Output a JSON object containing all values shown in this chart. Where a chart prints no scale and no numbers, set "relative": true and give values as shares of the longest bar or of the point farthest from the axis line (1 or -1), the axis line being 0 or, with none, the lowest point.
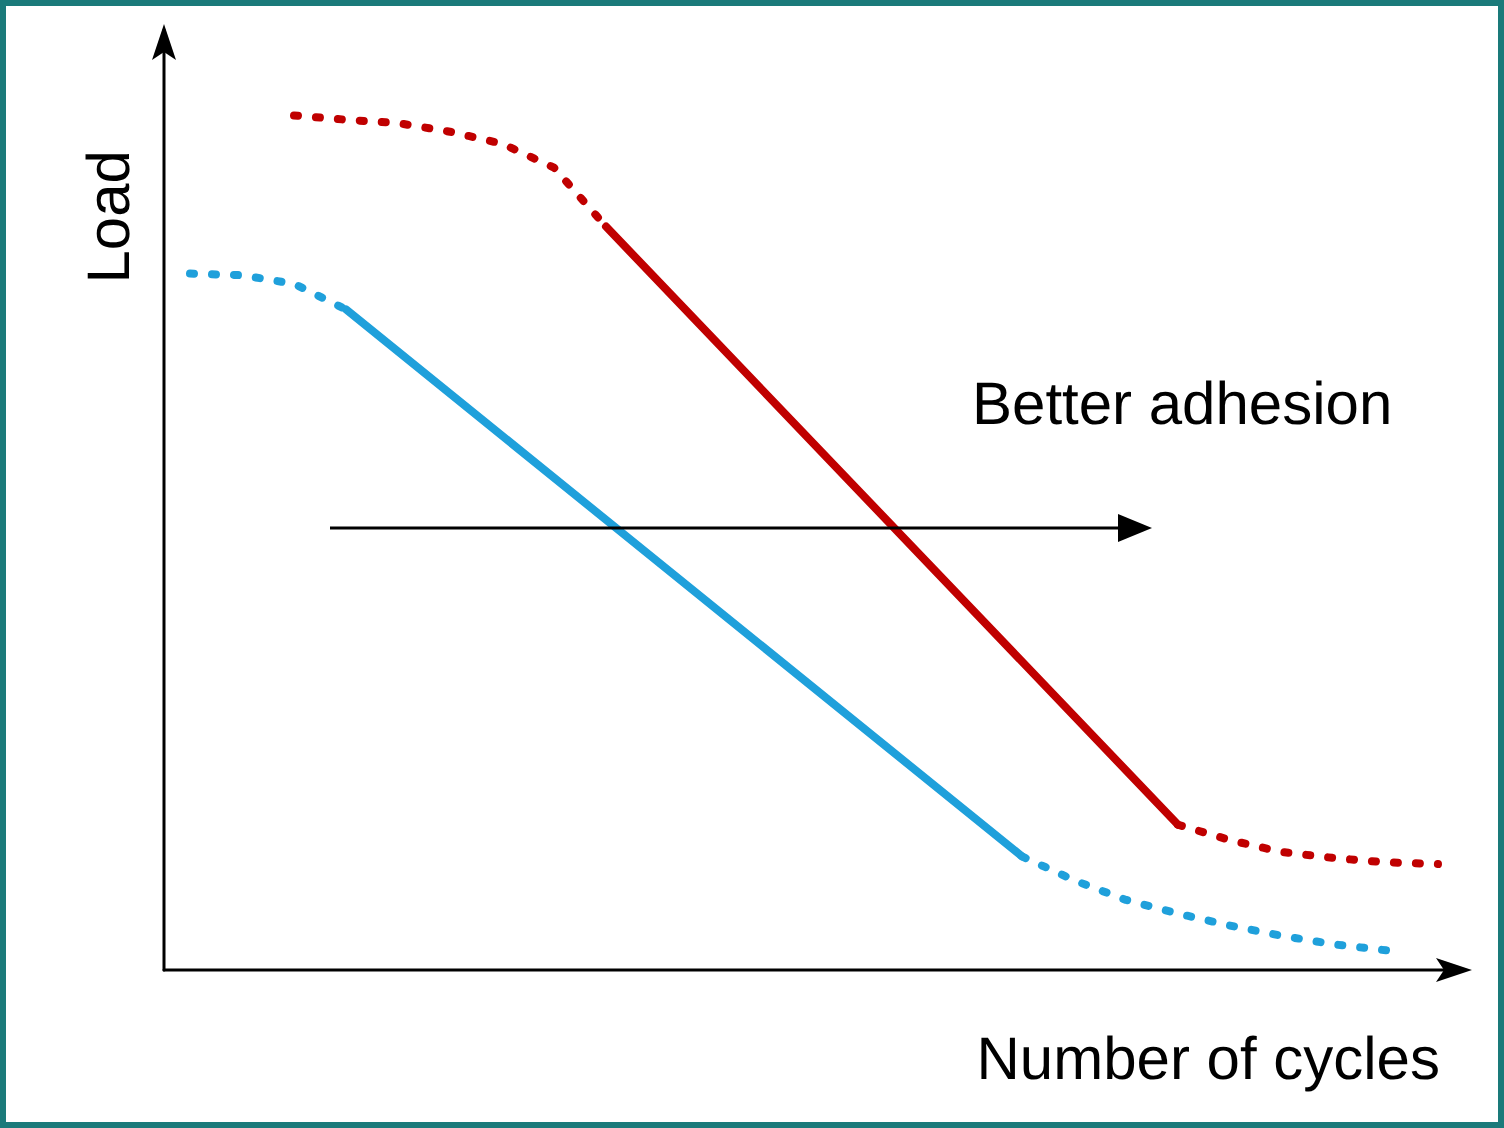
{
  "chart_data": {
    "type": "line",
    "relative": true,
    "xlabel": "Number of cycles",
    "ylabel": "Load",
    "marker": "none",
    "annotations": [
      "Better adhesion"
    ],
    "categories": [
      null,
      null,
      null,
      null,
      null,
      null,
      null,
      null,
      null,
      null,
      null,
      null,
      null,
      null,
      null,
      null,
      null,
      null,
      null,
      null,
      null,
      null,
      null,
      null,
      null
    ],
    "series": [
      {
        "color": "#c00000",
        "line_style": "dotted",
        "values": [
          null,
          null,
          1.0,
          0.995,
          0.991,
          0.981,
          0.967,
          0.939,
          0.87,
          null,
          null,
          null,
          null,
          null,
          null,
          null,
          null,
          null,
          null,
          null,
          null,
          null,
          null,
          null,
          null
        ]
      },
      {
        "color": "#c00000",
        "line_style": "solid",
        "values": [
          null,
          null,
          null,
          null,
          null,
          null,
          null,
          null,
          0.87,
          null,
          null,
          null,
          null,
          null,
          null,
          null,
          null,
          null,
          null,
          0.17,
          null,
          null,
          null,
          null,
          null
        ]
      },
      {
        "color": "#c00000",
        "line_style": "dotted",
        "values": [
          null,
          null,
          null,
          null,
          null,
          null,
          null,
          null,
          null,
          null,
          null,
          null,
          null,
          null,
          null,
          null,
          null,
          null,
          null,
          0.17,
          0.152,
          0.138,
          0.131,
          0.126,
          0.124
        ]
      },
      {
        "color": "#1fa0db",
        "line_style": "dotted",
        "values": [
          0.815,
          0.813,
          0.803,
          0.773,
          null,
          null,
          null,
          null,
          null,
          null,
          null,
          null,
          null,
          null,
          null,
          null,
          null,
          null,
          null,
          null,
          null,
          null,
          null,
          null,
          null
        ]
      },
      {
        "color": "#1fa0db",
        "line_style": "solid",
        "values": [
          null,
          null,
          null,
          0.773,
          null,
          null,
          null,
          null,
          null,
          null,
          null,
          null,
          null,
          null,
          null,
          null,
          0.133,
          null,
          null,
          null,
          null,
          null,
          null,
          null,
          null
        ]
      },
      {
        "color": "#1fa0db",
        "line_style": "dotted",
        "values": [
          null,
          null,
          null,
          null,
          null,
          null,
          null,
          null,
          null,
          null,
          null,
          null,
          null,
          null,
          null,
          null,
          0.133,
          0.105,
          0.082,
          0.066,
          0.052,
          0.04,
          0.03,
          0.023,
          null
        ]
      }
    ]
  }
}
